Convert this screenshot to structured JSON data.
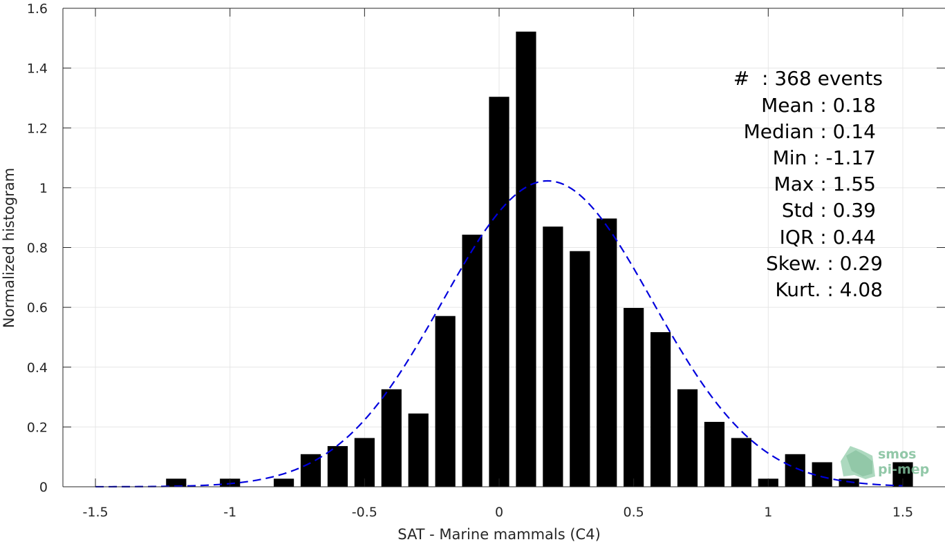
{
  "chart_data": {
    "type": "bar",
    "xlabel": "SAT - Marine mammals (C4)",
    "ylabel": "Normalized histogram",
    "xlim": [
      -1.6,
      1.6
    ],
    "ylim": [
      0,
      1.6
    ],
    "xticks": [
      -1.5,
      -1,
      -0.5,
      0,
      0.5,
      1,
      1.5
    ],
    "xtick_labels": [
      "-1.5",
      "-1",
      "-0.5",
      "0",
      "0.5",
      "1",
      "1.5"
    ],
    "yticks": [
      0,
      0.2,
      0.4,
      0.6,
      0.8,
      1,
      1.2,
      1.4,
      1.6
    ],
    "ytick_labels": [
      "0",
      "0.2",
      "0.4",
      "0.6",
      "0.8",
      "1",
      "1.2",
      "1.4",
      "1.6"
    ],
    "grid": true,
    "bar_width": 0.075,
    "bar_color": "#000000",
    "bars": {
      "x": [
        -1.2,
        -1.0,
        -0.8,
        -0.7,
        -0.6,
        -0.5,
        -0.4,
        -0.3,
        -0.2,
        -0.1,
        0.0,
        0.1,
        0.2,
        0.3,
        0.4,
        0.5,
        0.6,
        0.7,
        0.8,
        0.9,
        1.0,
        1.1,
        1.2,
        1.3,
        1.5
      ],
      "values": [
        0.027,
        0.027,
        0.027,
        0.109,
        0.136,
        0.163,
        0.326,
        0.245,
        0.571,
        0.843,
        1.304,
        1.522,
        0.87,
        0.788,
        0.897,
        0.598,
        0.517,
        0.326,
        0.217,
        0.163,
        0.027,
        0.109,
        0.082,
        0.027,
        0.082
      ]
    },
    "fit": {
      "type": "normal",
      "mean": 0.18,
      "std": 0.39,
      "color": "#0000dd",
      "style": "dashed"
    },
    "stats_lines": [
      "#  : 368 events",
      "Mean : 0.18",
      "Median : 0.14",
      "Min : -1.17",
      "Max : 1.55",
      "Std : 0.39",
      "IQR : 0.44",
      "Skew. : 0.29",
      "Kurt. : 4.08"
    ]
  },
  "logo": {
    "line1": "smos",
    "line2": "pi-mep"
  }
}
